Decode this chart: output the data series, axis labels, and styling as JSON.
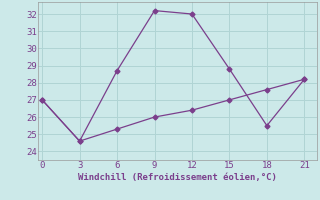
{
  "line1_x": [
    0,
    3,
    6,
    9,
    12,
    15,
    18,
    21
  ],
  "line1_y": [
    27,
    24.6,
    28.7,
    32.2,
    32.0,
    28.8,
    25.5,
    28.2
  ],
  "line2_x": [
    0,
    3,
    6,
    9,
    12,
    15,
    18,
    21
  ],
  "line2_y": [
    27,
    24.6,
    25.3,
    26.0,
    26.4,
    27.0,
    27.6,
    28.2
  ],
  "line_color": "#7b3f8c",
  "bg_color": "#cce9e9",
  "grid_color": "#b0d4d4",
  "xlabel": "Windchill (Refroidissement éolien,°C)",
  "xlabel_color": "#7b3f8c",
  "tick_color": "#7b3f8c",
  "ylim": [
    23.5,
    32.7
  ],
  "xlim": [
    -0.3,
    22.0
  ],
  "yticks": [
    24,
    25,
    26,
    27,
    28,
    29,
    30,
    31,
    32
  ],
  "xticks": [
    0,
    3,
    6,
    9,
    12,
    15,
    18,
    21
  ]
}
